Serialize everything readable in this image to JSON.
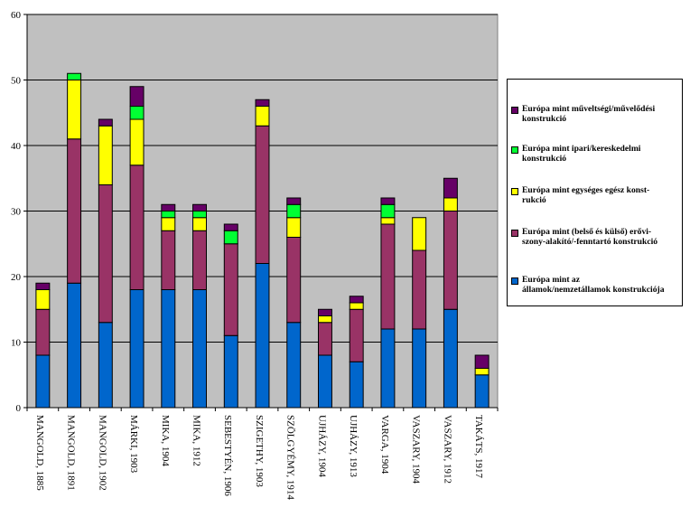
{
  "chart_data": {
    "type": "bar",
    "stacked": true,
    "categories": [
      "MANGOLD, 1885",
      "MANGOLD, 1891",
      "MANGOLD, 1902",
      "MÁRKI, 1903",
      "MIKA, 1904",
      "MIKA, 1912",
      "SEBESTYÉN, 1906",
      "SZIGETHY, 1903",
      "SZÖLGYÉMY, 1914",
      "UJHÁZY, 1904",
      "UJHÁZY, 1913",
      "VARGA, 1904",
      "VASZARY, 1904",
      "VASZARY, 1912",
      "TAKÁTS, 1917"
    ],
    "series": [
      {
        "name": "Európa mint az\nállamok/nemzetállamok konstrukciója",
        "color": "#0066CC",
        "values": [
          8,
          19,
          13,
          18,
          18,
          18,
          11,
          22,
          13,
          8,
          7,
          12,
          12,
          15,
          5
        ]
      },
      {
        "name": "Európa mint (belső és külső) erővi-\nszony-alakító/-fenntartó konstrukció",
        "color": "#993366",
        "values": [
          7,
          22,
          21,
          19,
          9,
          9,
          14,
          21,
          13,
          5,
          8,
          16,
          12,
          15,
          0
        ]
      },
      {
        "name": "Európa mint egységes egész konst-\nrukció",
        "color": "#FFFF00",
        "values": [
          3,
          9,
          9,
          7,
          2,
          2,
          0,
          3,
          3,
          1,
          1,
          1,
          5,
          2,
          1
        ]
      },
      {
        "name": "Európa mint ipari/kereskedelmi\nkonstrukció",
        "color": "#00FF33",
        "values": [
          0,
          1,
          0,
          2,
          1,
          1,
          2,
          0,
          2,
          0,
          0,
          2,
          0,
          0,
          0
        ]
      },
      {
        "name": "Európa mint műveltségi/művelődési\nkonstrukció",
        "color": "#660066",
        "values": [
          1,
          0,
          1,
          3,
          1,
          1,
          1,
          1,
          1,
          1,
          1,
          1,
          0,
          3,
          2
        ]
      }
    ],
    "yticks": [
      "0",
      "10",
      "20",
      "30",
      "40",
      "50",
      "60"
    ],
    "ylim": [
      0,
      60
    ],
    "grid": true,
    "plot_background": "#C0C0C0",
    "legend_position": "right"
  }
}
